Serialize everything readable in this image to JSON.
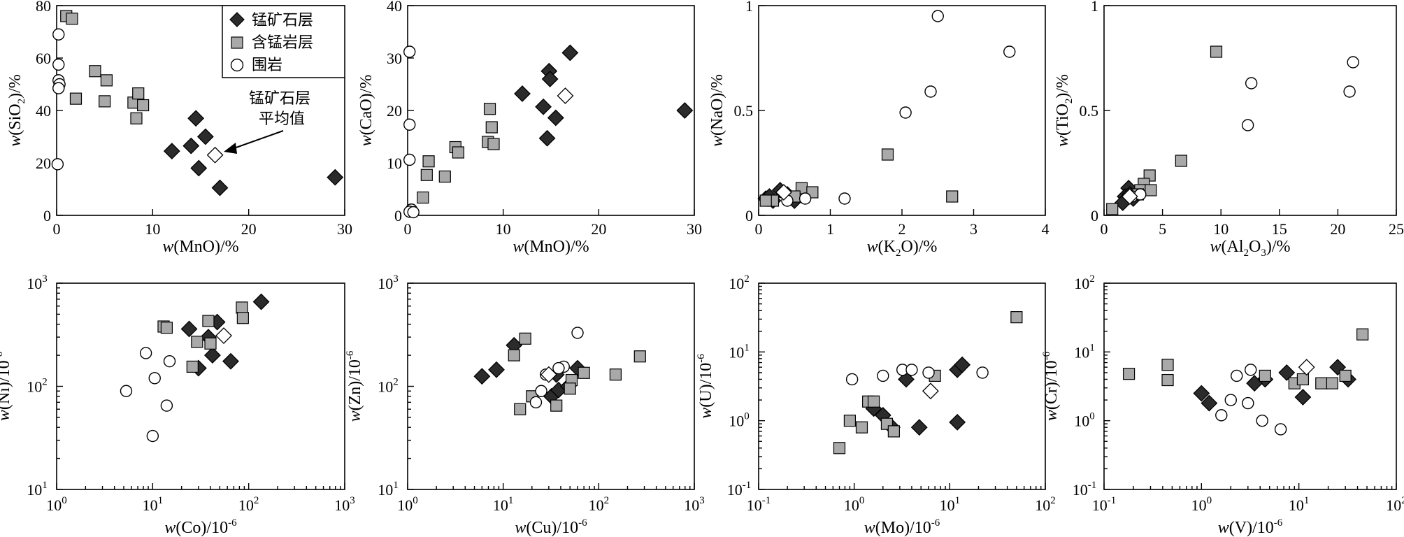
{
  "colors": {
    "manganese_ore": "#2b2b2b",
    "mn_bearing_rock": "#a9a9a9",
    "wall_rock": "#ffffff",
    "average_marker": "#ffffff",
    "stroke": "#000000"
  },
  "legend": {
    "manganese_ore": "锰矿石层",
    "mn_bearing_rock": "含锰岩层",
    "wall_rock": "围岩"
  },
  "annotation": {
    "line1": "锰矿石层",
    "line2": "平均值"
  },
  "chart_data": [
    {
      "type": "scatter",
      "scale": "linear",
      "xlabel": "w(MnO)/%",
      "ylabel": "w(SiO2)/%",
      "xlim": [
        0,
        30
      ],
      "ylim": [
        0,
        80
      ],
      "xticks": [
        0,
        10,
        20,
        30
      ],
      "yticks": [
        0,
        20,
        40,
        60,
        80
      ],
      "series": [
        {
          "name": "锰矿石层",
          "points": [
            [
              14.5,
              37
            ],
            [
              15.5,
              30
            ],
            [
              14,
              26.5
            ],
            [
              12,
              24.5
            ],
            [
              14.8,
              18
            ],
            [
              17,
              10.5
            ],
            [
              29,
              14.5
            ]
          ]
        },
        {
          "name": "含锰岩层",
          "points": [
            [
              1,
              76
            ],
            [
              1.6,
              75
            ],
            [
              2,
              44.5
            ],
            [
              4,
              55
            ],
            [
              5.2,
              51.5
            ],
            [
              5,
              43.5
            ],
            [
              8,
              43
            ],
            [
              8.3,
              37
            ],
            [
              8.5,
              46.5
            ],
            [
              9,
              42
            ]
          ]
        },
        {
          "name": "围岩",
          "points": [
            [
              0.2,
              69
            ],
            [
              0.2,
              57.5
            ],
            [
              0.2,
              51.5
            ],
            [
              0.3,
              50
            ],
            [
              0.2,
              48.5
            ],
            [
              0.1,
              19.5
            ]
          ]
        },
        {
          "name": "锰矿石层平均值",
          "points": [
            [
              16.5,
              23
            ]
          ]
        }
      ]
    },
    {
      "type": "scatter",
      "scale": "linear",
      "xlabel": "w(MnO)/%",
      "ylabel": "w(CaO)/%",
      "xlim": [
        0,
        30
      ],
      "ylim": [
        0,
        40
      ],
      "xticks": [
        0,
        10,
        20,
        30
      ],
      "yticks": [
        0,
        10,
        20,
        30,
        40
      ],
      "series": [
        {
          "name": "锰矿石层",
          "points": [
            [
              17,
              31
            ],
            [
              14.8,
              27.5
            ],
            [
              14.9,
              26
            ],
            [
              12,
              23.2
            ],
            [
              14.2,
              20.7
            ],
            [
              15.5,
              18.6
            ],
            [
              14.6,
              14.7
            ],
            [
              29,
              20
            ]
          ]
        },
        {
          "name": "含锰岩层",
          "points": [
            [
              8.6,
              20.3
            ],
            [
              8.8,
              16.8
            ],
            [
              8.4,
              14
            ],
            [
              9,
              13.6
            ],
            [
              5,
              13
            ],
            [
              5.3,
              12
            ],
            [
              2.2,
              10.3
            ],
            [
              2,
              7.7
            ],
            [
              3.9,
              7.4
            ],
            [
              1.6,
              3.4
            ]
          ]
        },
        {
          "name": "围岩",
          "points": [
            [
              0.2,
              31.2
            ],
            [
              0.2,
              17.3
            ],
            [
              0.2,
              10.6
            ],
            [
              0.4,
              1.1
            ],
            [
              0.2,
              0.7
            ],
            [
              0.6,
              0.6
            ]
          ]
        },
        {
          "name": "锰矿石层平均值",
          "points": [
            [
              16.5,
              22.8
            ]
          ]
        }
      ]
    },
    {
      "type": "scatter",
      "scale": "linear",
      "xlabel": "w(K2O)/%",
      "ylabel": "w(NaO)/%",
      "xlim": [
        0,
        4
      ],
      "ylim": [
        0,
        1
      ],
      "xticks": [
        0,
        1,
        2,
        3,
        4
      ],
      "yticks": [
        0,
        0.5,
        1
      ],
      "series": [
        {
          "name": "锰矿石层",
          "points": [
            [
              0.3,
              0.12
            ],
            [
              0.2,
              0.07
            ],
            [
              0.1,
              0.08
            ],
            [
              0.4,
              0.1
            ],
            [
              0.5,
              0.07
            ],
            [
              0.15,
              0.09
            ]
          ]
        },
        {
          "name": "含锰岩层",
          "points": [
            [
              1.8,
              0.29
            ],
            [
              2.7,
              0.09
            ],
            [
              0.6,
              0.13
            ],
            [
              0.75,
              0.11
            ],
            [
              0.2,
              0.07
            ],
            [
              0.5,
              0.09
            ],
            [
              0.1,
              0.07
            ]
          ]
        },
        {
          "name": "围岩",
          "points": [
            [
              2.5,
              0.95
            ],
            [
              3.5,
              0.78
            ],
            [
              2.4,
              0.59
            ],
            [
              2.05,
              0.49
            ],
            [
              1.2,
              0.08
            ],
            [
              0.65,
              0.08
            ],
            [
              0.4,
              0.07
            ]
          ]
        },
        {
          "name": "锰矿石层平均值",
          "points": [
            [
              0.35,
              0.11
            ]
          ]
        }
      ]
    },
    {
      "type": "scatter",
      "scale": "linear",
      "xlabel": "w(Al2O3)/%",
      "ylabel": "w(TiO2)/%",
      "xlim": [
        0,
        25
      ],
      "ylim": [
        0,
        1
      ],
      "xticks": [
        0,
        5,
        10,
        15,
        20,
        25
      ],
      "yticks": [
        0,
        0.5,
        1
      ],
      "series": [
        {
          "name": "锰矿石层",
          "points": [
            [
              2.1,
              0.13
            ],
            [
              1.8,
              0.09
            ],
            [
              1.6,
              0.06
            ],
            [
              2.5,
              0.08
            ],
            [
              2.2,
              0.1
            ]
          ]
        },
        {
          "name": "含锰岩层",
          "points": [
            [
              9.6,
              0.78
            ],
            [
              6.6,
              0.26
            ],
            [
              3.9,
              0.19
            ],
            [
              3.4,
              0.15
            ],
            [
              3.1,
              0.12
            ],
            [
              4,
              0.12
            ],
            [
              2.9,
              0.1
            ],
            [
              0.7,
              0.03
            ]
          ]
        },
        {
          "name": "围岩",
          "points": [
            [
              21.3,
              0.73
            ],
            [
              12.6,
              0.63
            ],
            [
              21,
              0.59
            ],
            [
              12.3,
              0.43
            ],
            [
              2.4,
              0.09
            ],
            [
              3.1,
              0.1
            ]
          ]
        },
        {
          "name": "锰矿石层平均值",
          "points": [
            [
              2.2,
              0.09
            ]
          ]
        }
      ]
    },
    {
      "type": "scatter",
      "scale": "log",
      "xlabel": "w(Co)/10^-6",
      "ylabel": "w(Ni)/10^-6",
      "xlim": [
        1,
        1000
      ],
      "ylim": [
        10,
        1000
      ],
      "series": [
        {
          "name": "锰矿石层",
          "points": [
            [
              135,
              660
            ],
            [
              47,
              420
            ],
            [
              24,
              360
            ],
            [
              38,
              300
            ],
            [
              42,
              200
            ],
            [
              30,
              150
            ],
            [
              65,
              175
            ]
          ]
        },
        {
          "name": "含锰岩层",
          "points": [
            [
              13,
              380
            ],
            [
              14,
              370
            ],
            [
              85,
              580
            ],
            [
              87,
              460
            ],
            [
              38,
              430
            ],
            [
              29,
              270
            ],
            [
              40,
              260
            ],
            [
              26,
              155
            ]
          ]
        },
        {
          "name": "围岩",
          "points": [
            [
              8.5,
              210
            ],
            [
              15,
              175
            ],
            [
              10.5,
              120
            ],
            [
              5.3,
              90
            ],
            [
              14,
              65
            ],
            [
              10,
              33
            ]
          ]
        },
        {
          "name": "锰矿石层平均值",
          "points": [
            [
              55,
              310
            ]
          ]
        }
      ]
    },
    {
      "type": "scatter",
      "scale": "log",
      "xlabel": "w(Cu)/10^-6",
      "ylabel": "w(Zn)/10^-6",
      "xlim": [
        1,
        1000
      ],
      "ylim": [
        10,
        1000
      ],
      "series": [
        {
          "name": "锰矿石层",
          "points": [
            [
              13,
              250
            ],
            [
              8.5,
              145
            ],
            [
              6,
              125
            ],
            [
              36,
              130
            ],
            [
              60,
              150
            ],
            [
              32,
              80
            ],
            [
              38,
              92
            ],
            [
              48,
              100
            ]
          ]
        },
        {
          "name": "含锰岩层",
          "points": [
            [
              17,
              290
            ],
            [
              13,
              200
            ],
            [
              270,
              195
            ],
            [
              150,
              130
            ],
            [
              70,
              135
            ],
            [
              52,
              115
            ],
            [
              50,
              95
            ],
            [
              20,
              80
            ],
            [
              15,
              60
            ],
            [
              36,
              65
            ]
          ]
        },
        {
          "name": "围岩",
          "points": [
            [
              60,
              330
            ],
            [
              43,
              155
            ],
            [
              38,
              150
            ],
            [
              28,
              130
            ],
            [
              25,
              90
            ],
            [
              22,
              70
            ]
          ]
        },
        {
          "name": "锰矿石层平均值",
          "points": [
            [
              30,
              130
            ]
          ]
        }
      ]
    },
    {
      "type": "scatter",
      "scale": "log",
      "xlabel": "w(Mo)/10^-6",
      "ylabel": "w(U)/10^-6",
      "xlim": [
        0.1,
        100
      ],
      "ylim": [
        0.1,
        100
      ],
      "series": [
        {
          "name": "锰矿石层",
          "points": [
            [
              12,
              5.5
            ],
            [
              13.5,
              6.5
            ],
            [
              3.5,
              4
            ],
            [
              1.6,
              1.5
            ],
            [
              2,
              1.2
            ],
            [
              2.5,
              0.8
            ],
            [
              4.8,
              0.8
            ],
            [
              12,
              0.95
            ]
          ]
        },
        {
          "name": "含锰岩层",
          "points": [
            [
              50,
              32
            ],
            [
              7,
              4.5
            ],
            [
              1.4,
              1.9
            ],
            [
              1.6,
              1.9
            ],
            [
              0.9,
              1
            ],
            [
              1.2,
              0.8
            ],
            [
              2.2,
              0.9
            ],
            [
              2.6,
              0.7
            ],
            [
              0.7,
              0.4
            ]
          ]
        },
        {
          "name": "围岩",
          "points": [
            [
              3.2,
              5.5
            ],
            [
              4,
              5.5
            ],
            [
              0.95,
              4
            ],
            [
              2,
              4.5
            ],
            [
              6,
              5
            ],
            [
              22,
              5
            ]
          ]
        },
        {
          "name": "锰矿石层平均值",
          "points": [
            [
              6.3,
              2.7
            ]
          ]
        }
      ]
    },
    {
      "type": "scatter",
      "scale": "log",
      "xlabel": "w(V)/10^-6",
      "ylabel": "w(Cr)/10^-6",
      "xlim": [
        0.1,
        100
      ],
      "ylim": [
        0.1,
        100
      ],
      "series": [
        {
          "name": "锰矿石层",
          "points": [
            [
              7.5,
              5
            ],
            [
              25,
              6
            ],
            [
              32,
              4
            ],
            [
              4.5,
              4
            ],
            [
              3.5,
              3.5
            ],
            [
              1,
              2.5
            ],
            [
              1.2,
              1.8
            ],
            [
              11,
              2.2
            ]
          ]
        },
        {
          "name": "含锰岩层",
          "points": [
            [
              45,
              18
            ],
            [
              0.45,
              6.5
            ],
            [
              0.18,
              4.8
            ],
            [
              0.45,
              3.9
            ],
            [
              4.5,
              4.5
            ],
            [
              9,
              3.5
            ],
            [
              11,
              4
            ],
            [
              17,
              3.5
            ],
            [
              22,
              3.5
            ],
            [
              30,
              4.5
            ]
          ]
        },
        {
          "name": "围岩",
          "points": [
            [
              2.3,
              4.5
            ],
            [
              3.2,
              5.5
            ],
            [
              2,
              2
            ],
            [
              3,
              1.8
            ],
            [
              1.6,
              1.2
            ],
            [
              4.2,
              1
            ],
            [
              6.5,
              0.75
            ]
          ]
        },
        {
          "name": "锰矿石层平均值",
          "points": [
            [
              12,
              6
            ]
          ]
        }
      ]
    }
  ]
}
